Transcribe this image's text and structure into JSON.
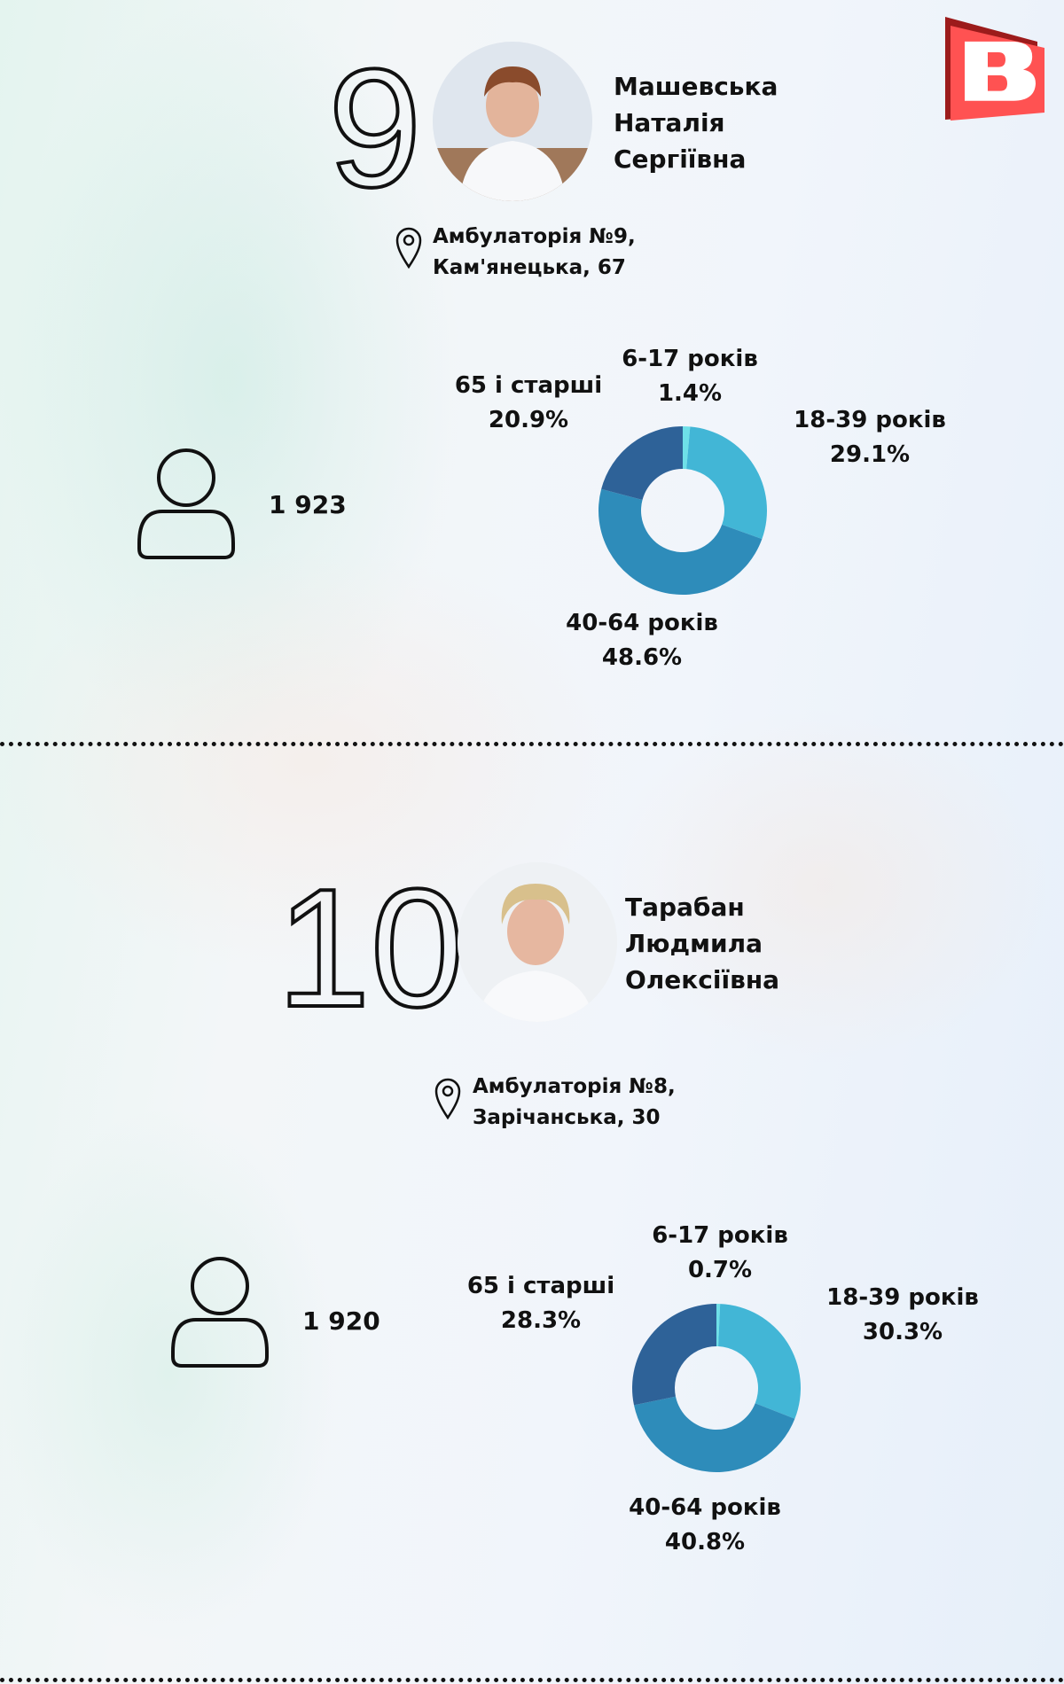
{
  "logo": {
    "letter": "B",
    "color": "#ff5252"
  },
  "entries": [
    {
      "rank": "9",
      "name": [
        "Машевська",
        "Наталія",
        "Сергіївна"
      ],
      "address": [
        "Амбулаторія №9,",
        "Кам'янецька, 67"
      ],
      "patients": "1 923",
      "labels": {
        "a": "6-17 років",
        "av": "1.4%",
        "b": "18-39 років",
        "bv": "29.1%",
        "c": "40-64 років",
        "cv": "48.6%",
        "d": "65 і старші",
        "dv": "20.9%"
      }
    },
    {
      "rank": "10",
      "name": [
        "Тарабан",
        "Людмила",
        "Олексіївна"
      ],
      "address": [
        "Амбулаторія №8,",
        "Зарічанська, 30"
      ],
      "patients": "1 920",
      "labels": {
        "a": "6-17 років",
        "av": "0.7%",
        "b": "18-39 років",
        "bv": "30.3%",
        "c": "40-64 років",
        "cv": "40.8%",
        "d": "65 і старші",
        "dv": "28.3%"
      }
    }
  ],
  "chart_data": [
    {
      "type": "pie",
      "donut": true,
      "categories": [
        "6-17 років",
        "18-39 років",
        "40-64 років",
        "65 і старші"
      ],
      "values": [
        1.4,
        29.1,
        48.6,
        20.9
      ],
      "colors": [
        "#6ee0e8",
        "#42b6d6",
        "#2e8cba",
        "#2e6298"
      ]
    },
    {
      "type": "pie",
      "donut": true,
      "categories": [
        "6-17 років",
        "18-39 років",
        "40-64 років",
        "65 і старші"
      ],
      "values": [
        0.7,
        30.3,
        40.8,
        28.3
      ],
      "colors": [
        "#6ee0e8",
        "#42b6d6",
        "#2e8cba",
        "#2e6298"
      ]
    }
  ]
}
